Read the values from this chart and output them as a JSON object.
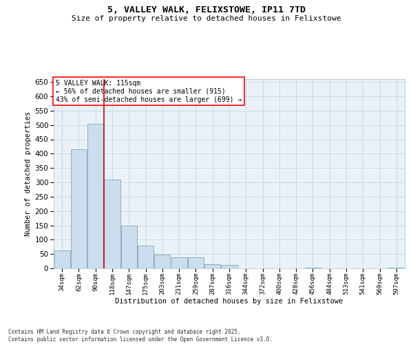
{
  "title_line1": "5, VALLEY WALK, FELIXSTOWE, IP11 7TD",
  "title_line2": "Size of property relative to detached houses in Felixstowe",
  "xlabel": "Distribution of detached houses by size in Felixstowe",
  "ylabel": "Number of detached properties",
  "categories": [
    "34sqm",
    "62sqm",
    "90sqm",
    "118sqm",
    "147sqm",
    "175sqm",
    "203sqm",
    "231sqm",
    "259sqm",
    "287sqm",
    "316sqm",
    "344sqm",
    "372sqm",
    "400sqm",
    "428sqm",
    "456sqm",
    "484sqm",
    "513sqm",
    "541sqm",
    "569sqm",
    "597sqm"
  ],
  "values": [
    62,
    415,
    505,
    310,
    150,
    80,
    48,
    38,
    38,
    15,
    12,
    0,
    0,
    0,
    0,
    3,
    0,
    0,
    0,
    0,
    3
  ],
  "bar_color": "#ccdded",
  "bar_edge_color": "#7aaabb",
  "grid_color": "#c8d8e8",
  "background_color": "#eaf2f8",
  "vline_x_index": 3,
  "vline_color": "#cc0000",
  "annotation_text_l1": "5 VALLEY WALK: 115sqm",
  "annotation_text_l2": "← 56% of detached houses are smaller (915)",
  "annotation_text_l3": "43% of semi-detached houses are larger (699) →",
  "ylim": [
    0,
    660
  ],
  "yticks": [
    0,
    50,
    100,
    150,
    200,
    250,
    300,
    350,
    400,
    450,
    500,
    550,
    600,
    650
  ],
  "footer_line1": "Contains HM Land Registry data © Crown copyright and database right 2025.",
  "footer_line2": "Contains public sector information licensed under the Open Government Licence v3.0."
}
